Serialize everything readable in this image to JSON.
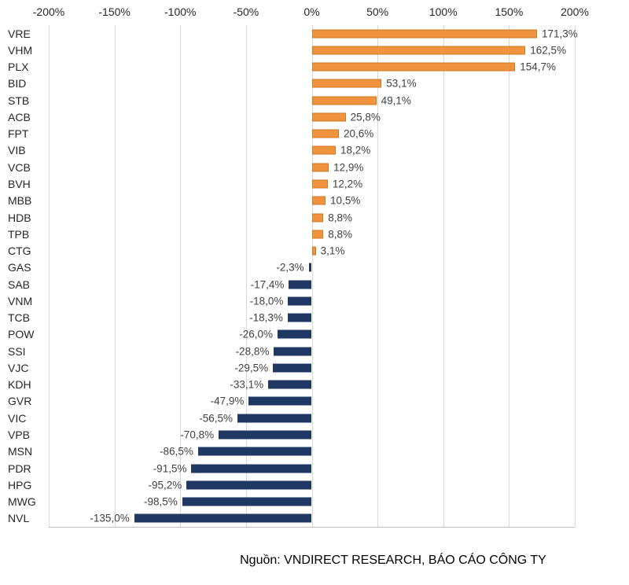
{
  "chart_data": {
    "type": "bar",
    "orientation": "horizontal",
    "title": "",
    "xlabel": "",
    "ylabel": "",
    "xlim": [
      -200,
      200
    ],
    "grid": true,
    "x_ticks": [
      "-200%",
      "-150%",
      "-100%",
      "-50%",
      "0%",
      "50%",
      "100%",
      "150%",
      "200%"
    ],
    "x_tick_values": [
      -200,
      -150,
      -100,
      -50,
      0,
      50,
      100,
      150,
      200
    ],
    "categories": [
      "VRE",
      "VHM",
      "PLX",
      "BID",
      "STB",
      "ACB",
      "FPT",
      "VIB",
      "VCB",
      "BVH",
      "MBB",
      "HDB",
      "TPB",
      "CTG",
      "GAS",
      "SAB",
      "VNM",
      "TCB",
      "POW",
      "SSI",
      "VJC",
      "KDH",
      "GVR",
      "VIC",
      "VPB",
      "MSN",
      "PDR",
      "HPG",
      "MWG",
      "NVL"
    ],
    "values": [
      171.3,
      162.5,
      154.7,
      53.1,
      49.1,
      25.8,
      20.6,
      18.2,
      12.9,
      12.2,
      10.5,
      8.8,
      8.8,
      3.1,
      -2.3,
      -17.4,
      -18.0,
      -18.3,
      -26.0,
      -28.8,
      -29.5,
      -33.1,
      -47.9,
      -56.5,
      -70.8,
      -86.5,
      -91.5,
      -95.2,
      -98.5,
      -135.0
    ],
    "labels": [
      "171,3%",
      "162,5%",
      "154,7%",
      "53,1%",
      "49,1%",
      "25,8%",
      "20,6%",
      "18,2%",
      "12,9%",
      "12,2%",
      "10,5%",
      "8,8%",
      "8,8%",
      "3,1%",
      "-2,3%",
      "-17,4%",
      "-18,0%",
      "-18,3%",
      "-26,0%",
      "-28,8%",
      "-29,5%",
      "-33,1%",
      "-47,9%",
      "-56,5%",
      "-70,8%",
      "-86,5%",
      "-91,5%",
      "-95,2%",
      "-98,5%",
      "-135,0%"
    ],
    "positive_color": "#F0933E",
    "positive_border": "#D07A22",
    "negative_color": "#1F3864",
    "gridline_color": "#d9d9d9",
    "source": "Nguồn: VNDIRECT RESEARCH, BÁO CÁO CÔNG TY"
  }
}
